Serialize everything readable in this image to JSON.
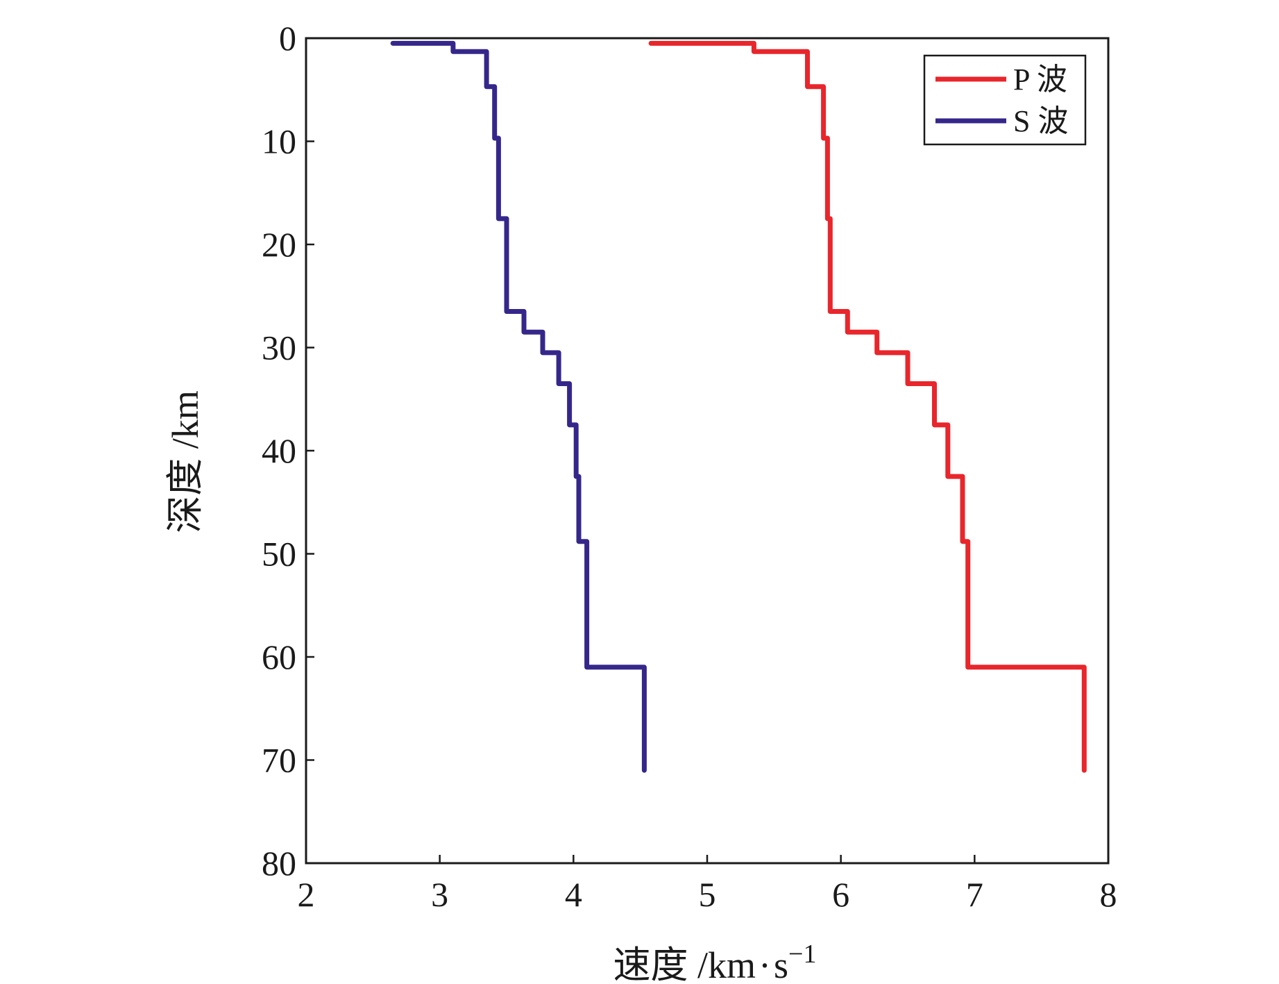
{
  "chart_data": {
    "type": "line",
    "xlabel": "速度 /km",
    "xlabel_dot": "·",
    "xlabel_unit": "s",
    "xlabel_exp": "−1",
    "ylabel": "深度 /km",
    "xlim": [
      2,
      8
    ],
    "ylim": [
      0,
      80
    ],
    "y_inverted": true,
    "grid": false,
    "legend_position": "top-right",
    "x_ticks": [
      2,
      3,
      4,
      5,
      6,
      7,
      8
    ],
    "y_ticks": [
      0,
      10,
      20,
      30,
      40,
      50,
      60,
      70,
      80
    ],
    "series": [
      {
        "name": "P 波",
        "color": "#e8262b",
        "x": [
          4.58,
          5.35,
          5.35,
          5.75,
          5.75,
          5.87,
          5.87,
          5.9,
          5.9,
          5.92,
          5.92,
          6.05,
          6.05,
          6.27,
          6.27,
          6.5,
          6.5,
          6.7,
          6.7,
          6.8,
          6.8,
          6.91,
          6.91,
          6.95,
          6.95,
          7.06,
          7.06,
          7.82,
          7.82
        ],
        "y": [
          0.5,
          0.5,
          1.3,
          1.3,
          4.7,
          4.7,
          9.7,
          9.7,
          17.5,
          17.5,
          26.5,
          26.5,
          28.5,
          28.5,
          30.5,
          30.5,
          33.5,
          33.5,
          37.5,
          37.5,
          42.5,
          42.5,
          48.8,
          48.8,
          61,
          61,
          61,
          61,
          71
        ]
      },
      {
        "name": "S 波",
        "color": "#35278a",
        "x": [
          2.65,
          3.1,
          3.1,
          3.35,
          3.35,
          3.41,
          3.41,
          3.44,
          3.44,
          3.5,
          3.5,
          3.63,
          3.63,
          3.77,
          3.77,
          3.89,
          3.89,
          3.97,
          3.97,
          4.02,
          4.02,
          4.04,
          4.04,
          4.1,
          4.1,
          4.53,
          4.53
        ],
        "y": [
          0.5,
          0.5,
          1.3,
          1.3,
          4.7,
          4.7,
          9.7,
          9.7,
          17.5,
          17.5,
          26.5,
          26.5,
          28.5,
          28.5,
          30.5,
          30.5,
          33.5,
          33.5,
          37.5,
          37.5,
          42.5,
          42.5,
          48.8,
          48.8,
          61,
          61,
          71
        ]
      }
    ]
  }
}
